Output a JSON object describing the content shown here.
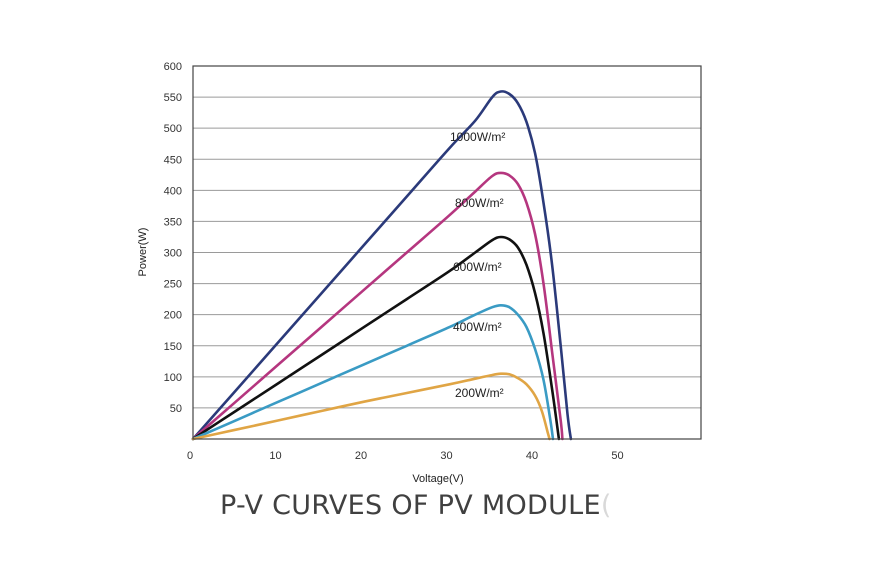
{
  "chart_data": {
    "type": "line",
    "title": "",
    "xlabel": "Voltage(V)",
    "ylabel": "Power(W)",
    "xlim": [
      0,
      60
    ],
    "ylim": [
      0,
      600
    ],
    "xticks": [
      0,
      10,
      20,
      30,
      40,
      50
    ],
    "yticks": [
      50,
      100,
      150,
      200,
      250,
      300,
      350,
      400,
      450,
      500,
      550,
      600
    ],
    "grid": "horizontal",
    "series": [
      {
        "name": "1000W/m²",
        "color": "#2b3a7a",
        "points": [
          [
            0,
            0
          ],
          [
            5,
            78
          ],
          [
            10,
            156
          ],
          [
            15,
            234
          ],
          [
            20,
            312
          ],
          [
            25,
            390
          ],
          [
            30,
            468
          ],
          [
            33,
            512
          ],
          [
            35,
            550
          ],
          [
            36,
            559
          ],
          [
            37,
            555
          ],
          [
            38,
            540
          ],
          [
            39,
            510
          ],
          [
            40,
            460
          ],
          [
            41,
            380
          ],
          [
            42,
            280
          ],
          [
            43,
            150
          ],
          [
            43.8,
            40
          ],
          [
            44.2,
            0
          ]
        ]
      },
      {
        "name": "800W/m²",
        "color": "#b5367f",
        "points": [
          [
            0,
            0
          ],
          [
            5,
            60
          ],
          [
            10,
            120
          ],
          [
            15,
            180
          ],
          [
            20,
            240
          ],
          [
            25,
            300
          ],
          [
            30,
            360
          ],
          [
            33,
            398
          ],
          [
            35,
            423
          ],
          [
            36,
            428
          ],
          [
            37,
            424
          ],
          [
            38,
            410
          ],
          [
            39,
            380
          ],
          [
            40,
            330
          ],
          [
            41,
            250
          ],
          [
            42,
            140
          ],
          [
            43,
            30
          ],
          [
            43.2,
            0
          ]
        ]
      },
      {
        "name": "600W/m²",
        "color": "#111111",
        "points": [
          [
            0,
            0
          ],
          [
            5,
            45
          ],
          [
            10,
            90
          ],
          [
            15,
            135
          ],
          [
            20,
            180
          ],
          [
            25,
            225
          ],
          [
            30,
            270
          ],
          [
            33,
            300
          ],
          [
            35,
            320
          ],
          [
            36,
            325
          ],
          [
            37,
            321
          ],
          [
            38,
            308
          ],
          [
            39,
            280
          ],
          [
            40,
            235
          ],
          [
            41,
            170
          ],
          [
            42,
            80
          ],
          [
            42.8,
            0
          ]
        ]
      },
      {
        "name": "400W/m²",
        "color": "#3a9bc4",
        "points": [
          [
            0,
            0
          ],
          [
            5,
            30
          ],
          [
            10,
            60
          ],
          [
            15,
            90
          ],
          [
            20,
            120
          ],
          [
            25,
            150
          ],
          [
            30,
            180
          ],
          [
            33,
            200
          ],
          [
            35,
            212
          ],
          [
            36,
            215
          ],
          [
            37,
            212
          ],
          [
            38,
            200
          ],
          [
            39,
            180
          ],
          [
            40,
            145
          ],
          [
            41,
            95
          ],
          [
            41.8,
            30
          ],
          [
            42.1,
            0
          ]
        ]
      },
      {
        "name": "200W/m²",
        "color": "#e0a545",
        "points": [
          [
            0,
            0
          ],
          [
            5,
            15
          ],
          [
            10,
            30
          ],
          [
            15,
            45
          ],
          [
            20,
            60
          ],
          [
            25,
            74
          ],
          [
            30,
            88
          ],
          [
            33,
            97
          ],
          [
            35,
            103
          ],
          [
            36,
            105
          ],
          [
            37,
            104
          ],
          [
            38,
            98
          ],
          [
            39,
            88
          ],
          [
            40,
            70
          ],
          [
            40.8,
            45
          ],
          [
            41.5,
            10
          ],
          [
            41.7,
            0
          ]
        ]
      }
    ]
  },
  "caption": {
    "text": "P-V CURVES OF PV MODULE",
    "trailing": "("
  }
}
